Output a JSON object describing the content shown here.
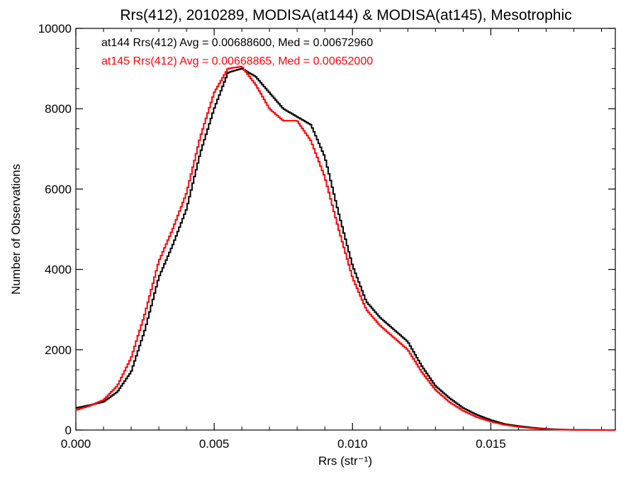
{
  "chart_data": {
    "type": "line",
    "title": "Rrs(412), 2010289, MODISA(at144) & MODISA(at145), Mesotrophic",
    "xlabel": "Rrs (str⁻¹)",
    "ylabel": "Number of Observations",
    "xlim": [
      0.0,
      0.0195
    ],
    "ylim": [
      0,
      10000
    ],
    "x_ticks": [
      0.0,
      0.005,
      0.01,
      0.015
    ],
    "x_tick_labels": [
      "0.000",
      "0.005",
      "0.010",
      "0.015"
    ],
    "y_ticks": [
      0,
      2000,
      4000,
      6000,
      8000,
      10000
    ],
    "y_tick_labels": [
      "0",
      "2000",
      "4000",
      "6000",
      "8000",
      "10000"
    ],
    "step": true,
    "legend_position": "top-left",
    "series": [
      {
        "name": "at144",
        "color": "#000000",
        "legend": "at144 Rrs(412) Avg = 0.00688600, Med = 0.00672960",
        "points": [
          [
            0.0,
            550
          ],
          [
            0.0005,
            620
          ],
          [
            0.001,
            700
          ],
          [
            0.0015,
            950
          ],
          [
            0.002,
            1450
          ],
          [
            0.0025,
            2500
          ],
          [
            0.003,
            3800
          ],
          [
            0.0035,
            4600
          ],
          [
            0.004,
            5500
          ],
          [
            0.0045,
            6900
          ],
          [
            0.005,
            8000
          ],
          [
            0.0055,
            8900
          ],
          [
            0.006,
            9000
          ],
          [
            0.0065,
            8800
          ],
          [
            0.007,
            8400
          ],
          [
            0.0075,
            8000
          ],
          [
            0.008,
            7800
          ],
          [
            0.0085,
            7600
          ],
          [
            0.009,
            6800
          ],
          [
            0.0095,
            5400
          ],
          [
            0.01,
            4100
          ],
          [
            0.0105,
            3200
          ],
          [
            0.011,
            2800
          ],
          [
            0.0115,
            2500
          ],
          [
            0.012,
            2200
          ],
          [
            0.0125,
            1600
          ],
          [
            0.013,
            1100
          ],
          [
            0.0135,
            800
          ],
          [
            0.014,
            550
          ],
          [
            0.0145,
            380
          ],
          [
            0.015,
            250
          ],
          [
            0.0155,
            150
          ],
          [
            0.016,
            100
          ],
          [
            0.0165,
            60
          ],
          [
            0.017,
            30
          ],
          [
            0.0175,
            15
          ],
          [
            0.018,
            5
          ],
          [
            0.0195,
            0
          ]
        ]
      },
      {
        "name": "at145",
        "color": "#ff0000",
        "legend": "at145 Rrs(412) Avg = 0.00668865, Med = 0.00652000",
        "points": [
          [
            0.0,
            500
          ],
          [
            0.0005,
            600
          ],
          [
            0.001,
            750
          ],
          [
            0.0015,
            1100
          ],
          [
            0.002,
            1800
          ],
          [
            0.0025,
            2900
          ],
          [
            0.003,
            4200
          ],
          [
            0.0035,
            5000
          ],
          [
            0.004,
            5900
          ],
          [
            0.0045,
            7300
          ],
          [
            0.005,
            8400
          ],
          [
            0.0055,
            9000
          ],
          [
            0.006,
            9050
          ],
          [
            0.0065,
            8600
          ],
          [
            0.007,
            8000
          ],
          [
            0.0075,
            7700
          ],
          [
            0.008,
            7700
          ],
          [
            0.0085,
            7200
          ],
          [
            0.009,
            6300
          ],
          [
            0.0095,
            5000
          ],
          [
            0.01,
            3800
          ],
          [
            0.0105,
            3000
          ],
          [
            0.011,
            2600
          ],
          [
            0.0115,
            2300
          ],
          [
            0.012,
            2000
          ],
          [
            0.0125,
            1450
          ],
          [
            0.013,
            1000
          ],
          [
            0.0135,
            700
          ],
          [
            0.014,
            480
          ],
          [
            0.0145,
            320
          ],
          [
            0.015,
            210
          ],
          [
            0.0155,
            130
          ],
          [
            0.016,
            80
          ],
          [
            0.0165,
            45
          ],
          [
            0.017,
            20
          ],
          [
            0.0175,
            10
          ],
          [
            0.018,
            3
          ],
          [
            0.0195,
            0
          ]
        ]
      }
    ]
  }
}
